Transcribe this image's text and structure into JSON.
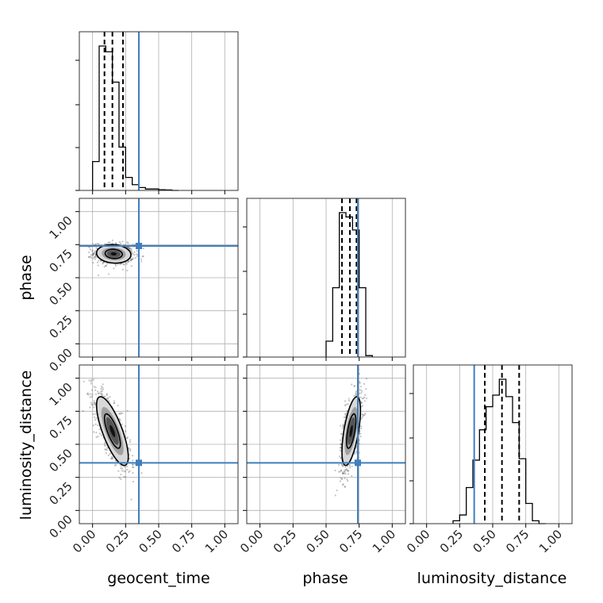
{
  "chart_data": {
    "type": "corner",
    "parameters": [
      "geocent_time",
      "phase",
      "luminosity_distance"
    ],
    "axis_range": [
      -0.1,
      1.1
    ],
    "ticks": [
      0.0,
      0.25,
      0.5,
      0.75,
      1.0
    ],
    "tick_labels": [
      "0.00",
      "0.25",
      "0.50",
      "0.75",
      "1.00"
    ],
    "truths": {
      "geocent_time": 0.35,
      "phase": 0.74,
      "luminosity_distance": 0.36
    },
    "quantiles": {
      "geocent_time": [
        0.09,
        0.15,
        0.23
      ],
      "phase": [
        0.62,
        0.68,
        0.73
      ],
      "luminosity_distance": [
        0.44,
        0.57,
        0.7
      ]
    },
    "histograms": {
      "geocent_time": {
        "bin_edges": [
          0.0,
          0.05,
          0.1,
          0.15,
          0.2,
          0.25,
          0.3,
          0.35,
          0.4,
          0.45,
          0.5,
          0.55,
          0.6,
          0.65
        ],
        "values": [
          0.2,
          1.0,
          0.96,
          0.75,
          0.3,
          0.09,
          0.04,
          0.02,
          0.01,
          0.01,
          0.005,
          0.003,
          0.0
        ]
      },
      "phase": {
        "bin_edges": [
          0.5,
          0.55,
          0.6,
          0.65,
          0.7,
          0.75,
          0.8,
          0.85
        ],
        "values": [
          0.11,
          0.48,
          1.0,
          0.97,
          0.88,
          0.48,
          0.01
        ]
      },
      "luminosity_distance": {
        "bin_edges": [
          0.2,
          0.25,
          0.3,
          0.35,
          0.4,
          0.45,
          0.5,
          0.55,
          0.6,
          0.65,
          0.7,
          0.75,
          0.8,
          0.85,
          0.9
        ],
        "values": [
          0.02,
          0.06,
          0.25,
          0.44,
          0.65,
          0.81,
          0.89,
          1.0,
          0.88,
          0.7,
          0.45,
          0.14,
          0.02,
          0.0
        ]
      }
    },
    "joint": [
      {
        "x": "geocent_time",
        "y": "phase",
        "center": [
          0.16,
          0.68
        ],
        "spread": [
          0.065,
          0.035
        ],
        "rho": -0.1,
        "levels": [
          1.0,
          2.0
        ],
        "points": 700
      },
      {
        "x": "geocent_time",
        "y": "luminosity_distance",
        "center": [
          0.15,
          0.6
        ],
        "spread": [
          0.06,
          0.13
        ],
        "rho": -0.75,
        "levels": [
          1.0,
          2.0
        ],
        "points": 800
      },
      {
        "x": "phase",
        "y": "luminosity_distance",
        "center": [
          0.69,
          0.6
        ],
        "spread": [
          0.035,
          0.13
        ],
        "rho": 0.6,
        "levels": [
          1.0,
          2.0
        ],
        "points": 800
      }
    ]
  }
}
